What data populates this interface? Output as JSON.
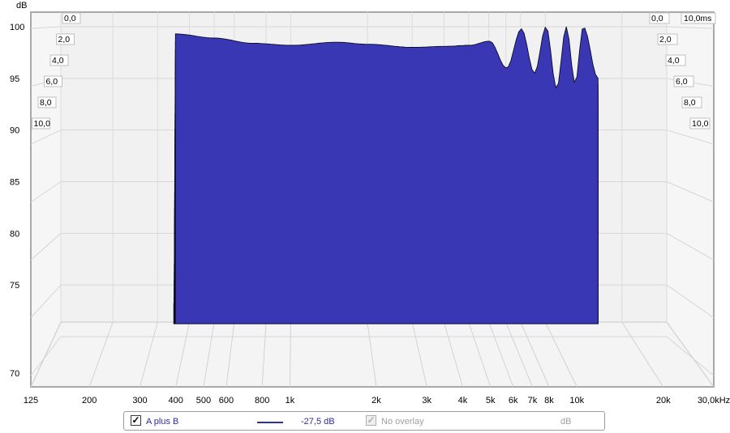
{
  "chart_data": {
    "type": "waterfall-3d",
    "ylabel": "dB",
    "yticks": [
      100,
      95,
      90,
      85,
      80,
      75,
      70
    ],
    "ylim": [
      70,
      100
    ],
    "x_scale": "log",
    "xticks": [
      {
        "value": 125,
        "label": "125"
      },
      {
        "value": 200,
        "label": "200"
      },
      {
        "value": 300,
        "label": "300"
      },
      {
        "value": 400,
        "label": "400"
      },
      {
        "value": 500,
        "label": "500"
      },
      {
        "value": 600,
        "label": "600"
      },
      {
        "value": 800,
        "label": "800"
      },
      {
        "value": 1000,
        "label": "1k"
      },
      {
        "value": 2000,
        "label": "2k"
      },
      {
        "value": 3000,
        "label": "3k"
      },
      {
        "value": 4000,
        "label": "4k"
      },
      {
        "value": 5000,
        "label": "5k"
      },
      {
        "value": 6000,
        "label": "6k"
      },
      {
        "value": 7000,
        "label": "7k"
      },
      {
        "value": 8000,
        "label": "8k"
      },
      {
        "value": 10000,
        "label": "10k"
      },
      {
        "value": 20000,
        "label": "20k"
      },
      {
        "value": 30000,
        "label": "30,0kHz"
      }
    ],
    "xlim": [
      125,
      30000
    ],
    "time_ticks": [
      "0,0",
      "2,0",
      "4,0",
      "6,0",
      "8,0",
      "10,0"
    ],
    "time_unit_label": "10,0ms",
    "time_range_ms": [
      0,
      10
    ],
    "freq_range": [
      350,
      16000
    ],
    "fill_color": "#3a37b5",
    "slice_count": 40,
    "front_slice": {
      "freq": [
        350,
        500,
        700,
        1000,
        1500,
        2000,
        3000,
        4000,
        5000,
        6000,
        7000,
        8000,
        9000,
        10000,
        11000,
        12000,
        13000,
        14000,
        16000
      ],
      "db": [
        99.3,
        98.9,
        98.4,
        98.2,
        98.5,
        98.3,
        98.0,
        98.1,
        98.2,
        98.6,
        96.0,
        99.8,
        95.5,
        100.0,
        94.0,
        100.0,
        94.5,
        100.0,
        95.0
      ]
    }
  },
  "legend": {
    "series_checked": "✓",
    "series_label": "A plus B",
    "series_value": "-27,5 dB",
    "series_color": "#2e2d9c",
    "overlay_checked": "✓",
    "overlay_label": "No overlay",
    "unit": "dB"
  }
}
